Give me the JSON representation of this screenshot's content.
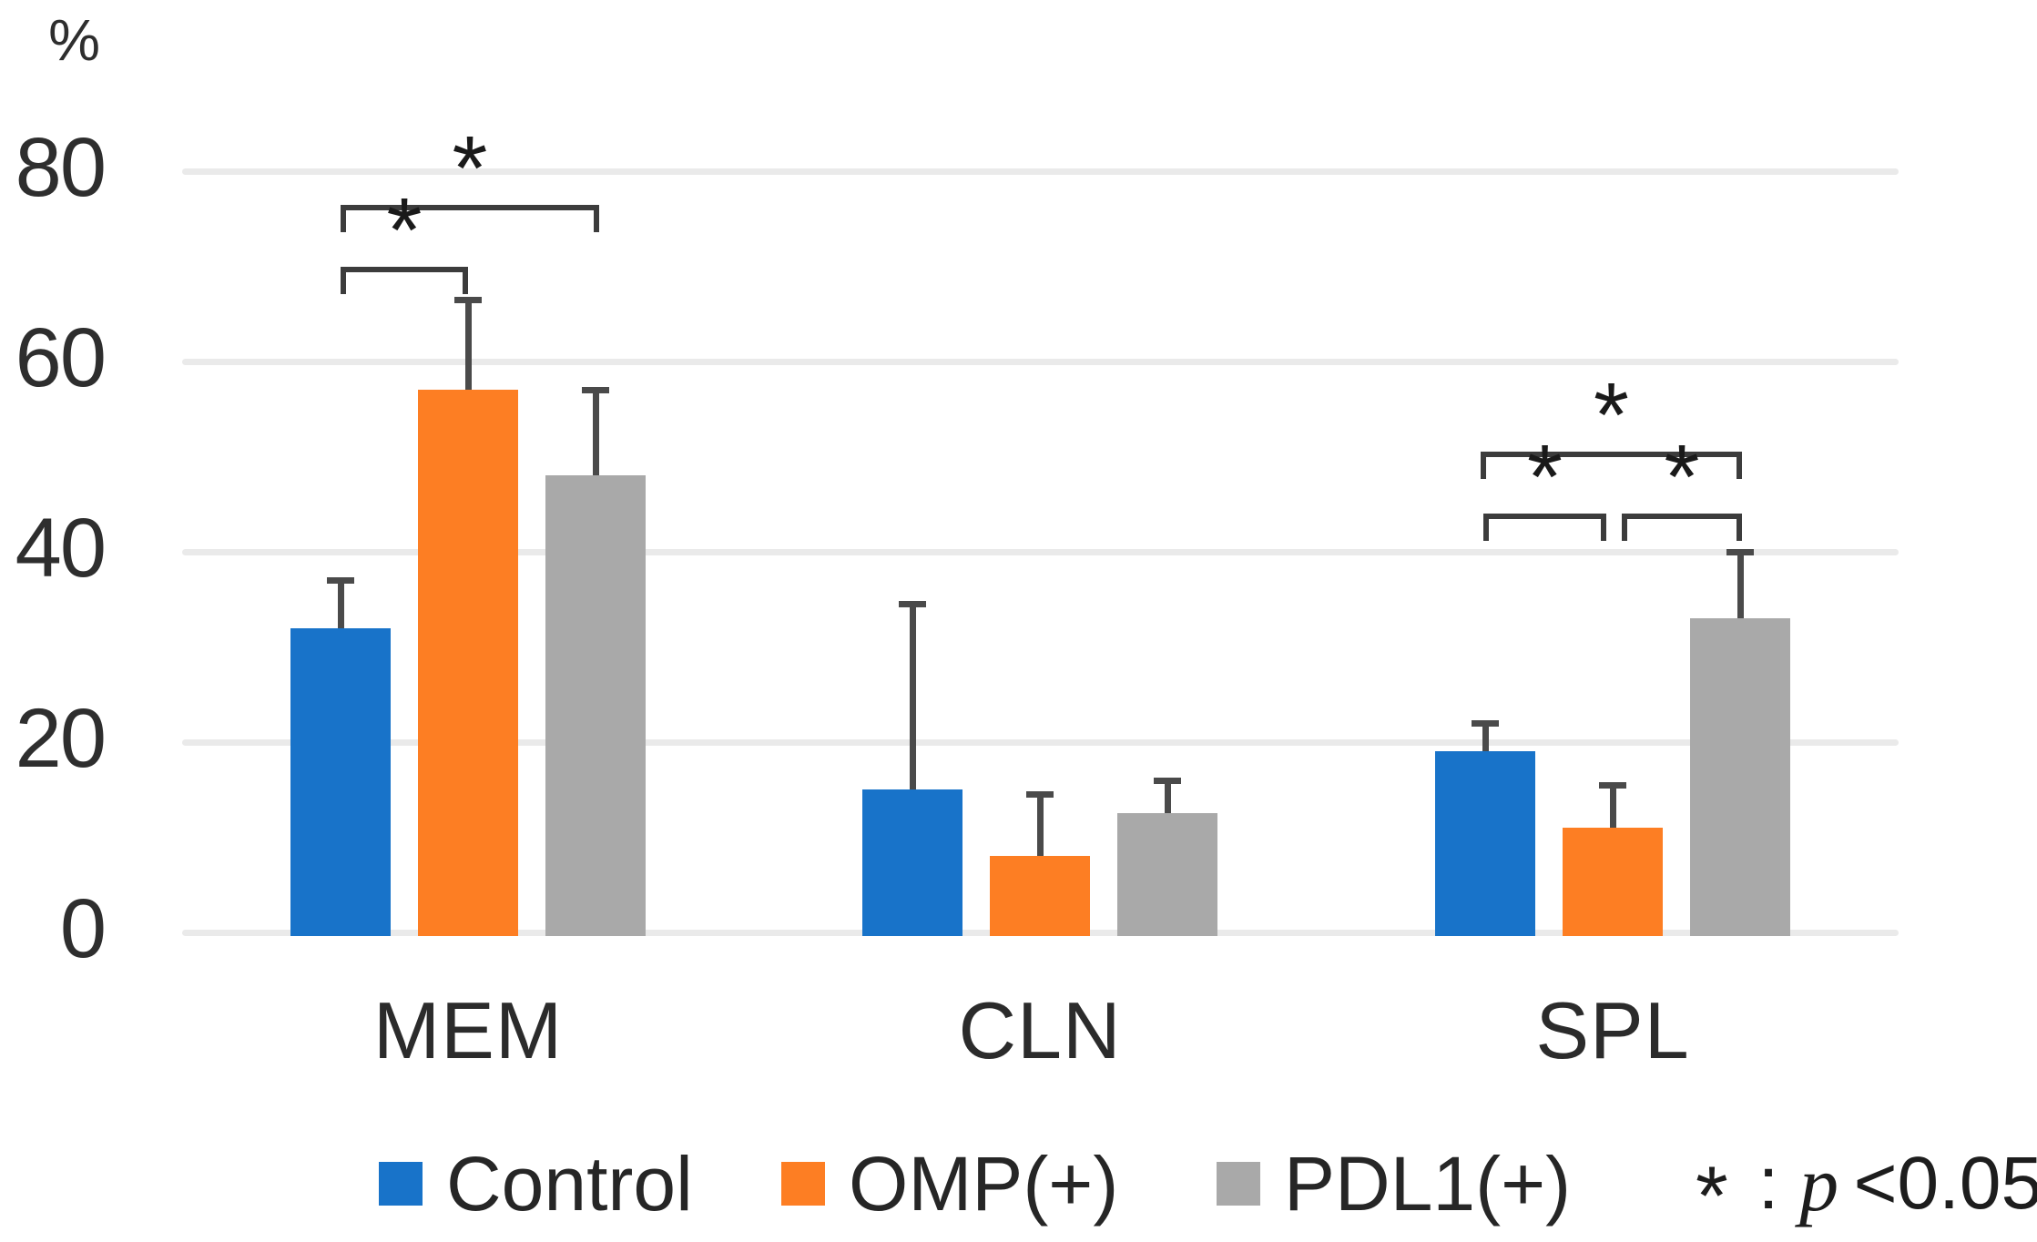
{
  "chart_data": {
    "type": "bar",
    "title": "",
    "unit_label": "%",
    "categories": [
      "MEM",
      "CLN",
      "SPL"
    ],
    "series": [
      {
        "name": "Control",
        "color": "#1873C9",
        "values": [
          32,
          15,
          19
        ],
        "errors_plus": [
          5,
          19.5,
          3
        ]
      },
      {
        "name": "OMP(+)",
        "color": "#FD7E23",
        "values": [
          57,
          8,
          11
        ],
        "errors_plus": [
          9.5,
          6.5,
          4.5
        ]
      },
      {
        "name": "PDL1(+)",
        "color": "#A9A9A9",
        "values": [
          48,
          12.5,
          33
        ],
        "errors_plus": [
          9,
          3.5,
          7
        ]
      }
    ],
    "ylim": [
      0,
      80
    ],
    "yticks": [
      0,
      20,
      40,
      60,
      80
    ],
    "grid": true,
    "legend_position": "bottom",
    "gridline_color": "#EAEAEA",
    "error_bar_color": "#4A4A4A",
    "significance_brackets": [
      {
        "category": "MEM",
        "series_from": "Control",
        "series_to": "OMP(+)",
        "level_value": 70,
        "label": "*",
        "from_dx": 0,
        "to_dx": 0
      },
      {
        "category": "MEM",
        "series_from": "Control",
        "series_to": "PDL1(+)",
        "level_value": 76.5,
        "label": "*",
        "from_dx": 0,
        "to_dx": 4
      },
      {
        "category": "SPL",
        "series_from": "Control",
        "series_to": "OMP(+)",
        "level_value": 44,
        "label": "*",
        "from_dx": -2,
        "to_dx": -7
      },
      {
        "category": "SPL",
        "series_from": "OMP(+)",
        "series_to": "PDL1(+)",
        "level_value": 44,
        "label": "*",
        "from_dx": 10,
        "to_dx": 2
      },
      {
        "category": "SPL",
        "series_from": "Control",
        "series_to": "PDL1(+)",
        "level_value": 50.5,
        "label": "*",
        "from_dx": -5,
        "to_dx": 2
      }
    ],
    "significance_note": {
      "star": "*",
      "colon": ":",
      "p": "p",
      "value": "<0.05"
    }
  }
}
